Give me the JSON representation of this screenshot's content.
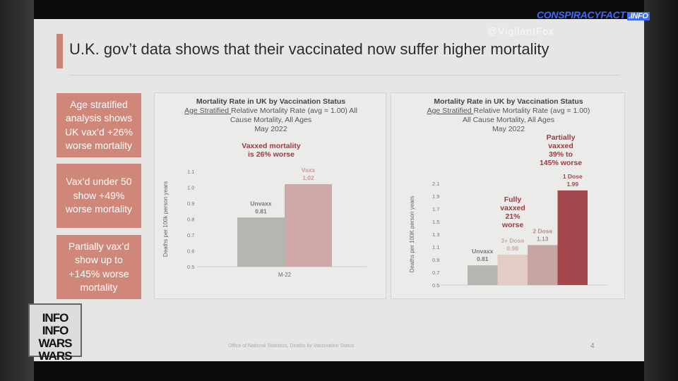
{
  "slide": {
    "title": "U.K. gov’t data shows that their vaccinated now suffer higher mortality",
    "boxes": [
      "Age stratified analysis shows UK vax’d +26% worse mortality",
      "Vax’d under 50 show +49% worse mortality",
      "Partially vax’d show up to +145% worse mortality"
    ],
    "source": "Office of National Statistics, Deaths by Vaccination Status",
    "page": "4"
  },
  "overlay": {
    "brand": "CONSPIRACYFACT",
    "brand_tld": ".INFO",
    "handle": "@VigilantFox",
    "logo": "INFO WARS .COM"
  },
  "chart_data": [
    {
      "type": "bar",
      "title": "Mortality Rate in UK by Vaccination Status",
      "subtitle_underlined": "Age Stratified",
      "subtitle": "Relative Mortality Rate (avg = 1.00) All",
      "subtitle2": "Cause Mortality, All Ages",
      "date": "May 2022",
      "annotation": [
        "Vaxxed  mortality",
        "is 26% worse"
      ],
      "ylabel": "Deaths per 100k person years",
      "xlabel": "M-22",
      "ylim": [
        0.5,
        1.1
      ],
      "yticks": [
        "0.5",
        "0.6",
        "0.7",
        "0.8",
        "0.9",
        "1.0",
        "1.1"
      ],
      "categories": [
        "Unvaxx",
        "Vaxx"
      ],
      "values": [
        0.81,
        1.02
      ],
      "labels": [
        "0.81",
        "1.02"
      ],
      "colors": [
        "#b4b6b2",
        "#cfa9a7"
      ],
      "label_colors": [
        "#777",
        "#c99a98"
      ]
    },
    {
      "type": "bar",
      "title": "Mortality Rate in UK by Vaccination Status",
      "subtitle_underlined": "Age Stratified",
      "subtitle": "Relative Mortality Rate (avg = 1.00)",
      "subtitle2": "All Cause Mortality, All Ages",
      "date": "May 2022",
      "annotation": [
        "Partially",
        "vaxxed",
        "39% to",
        "145% worse"
      ],
      "annotation2": [
        "Fully",
        "vaxxed",
        "21%",
        "worse"
      ],
      "ylabel": "Deaths per 100K person years",
      "ylim": [
        0.5,
        2.1
      ],
      "yticks": [
        "0.5",
        "0.7",
        "0.9",
        "1.1",
        "1.3",
        "1.5",
        "1.7",
        "1.9",
        "2.1"
      ],
      "categories": [
        "Unvaxx",
        "3+ Dose",
        "2 Dose",
        "1 Dose"
      ],
      "values": [
        0.81,
        0.98,
        1.13,
        1.99
      ],
      "labels": [
        "0.81",
        "0.98",
        "1.13",
        "1.99"
      ],
      "colors": [
        "#b4b6b2",
        "#e4cbc3",
        "#c6a5a3",
        "#a3474c"
      ],
      "label_colors": [
        "#777",
        "#c9a9a2",
        "#b08c8a",
        "#a3474c"
      ]
    }
  ]
}
